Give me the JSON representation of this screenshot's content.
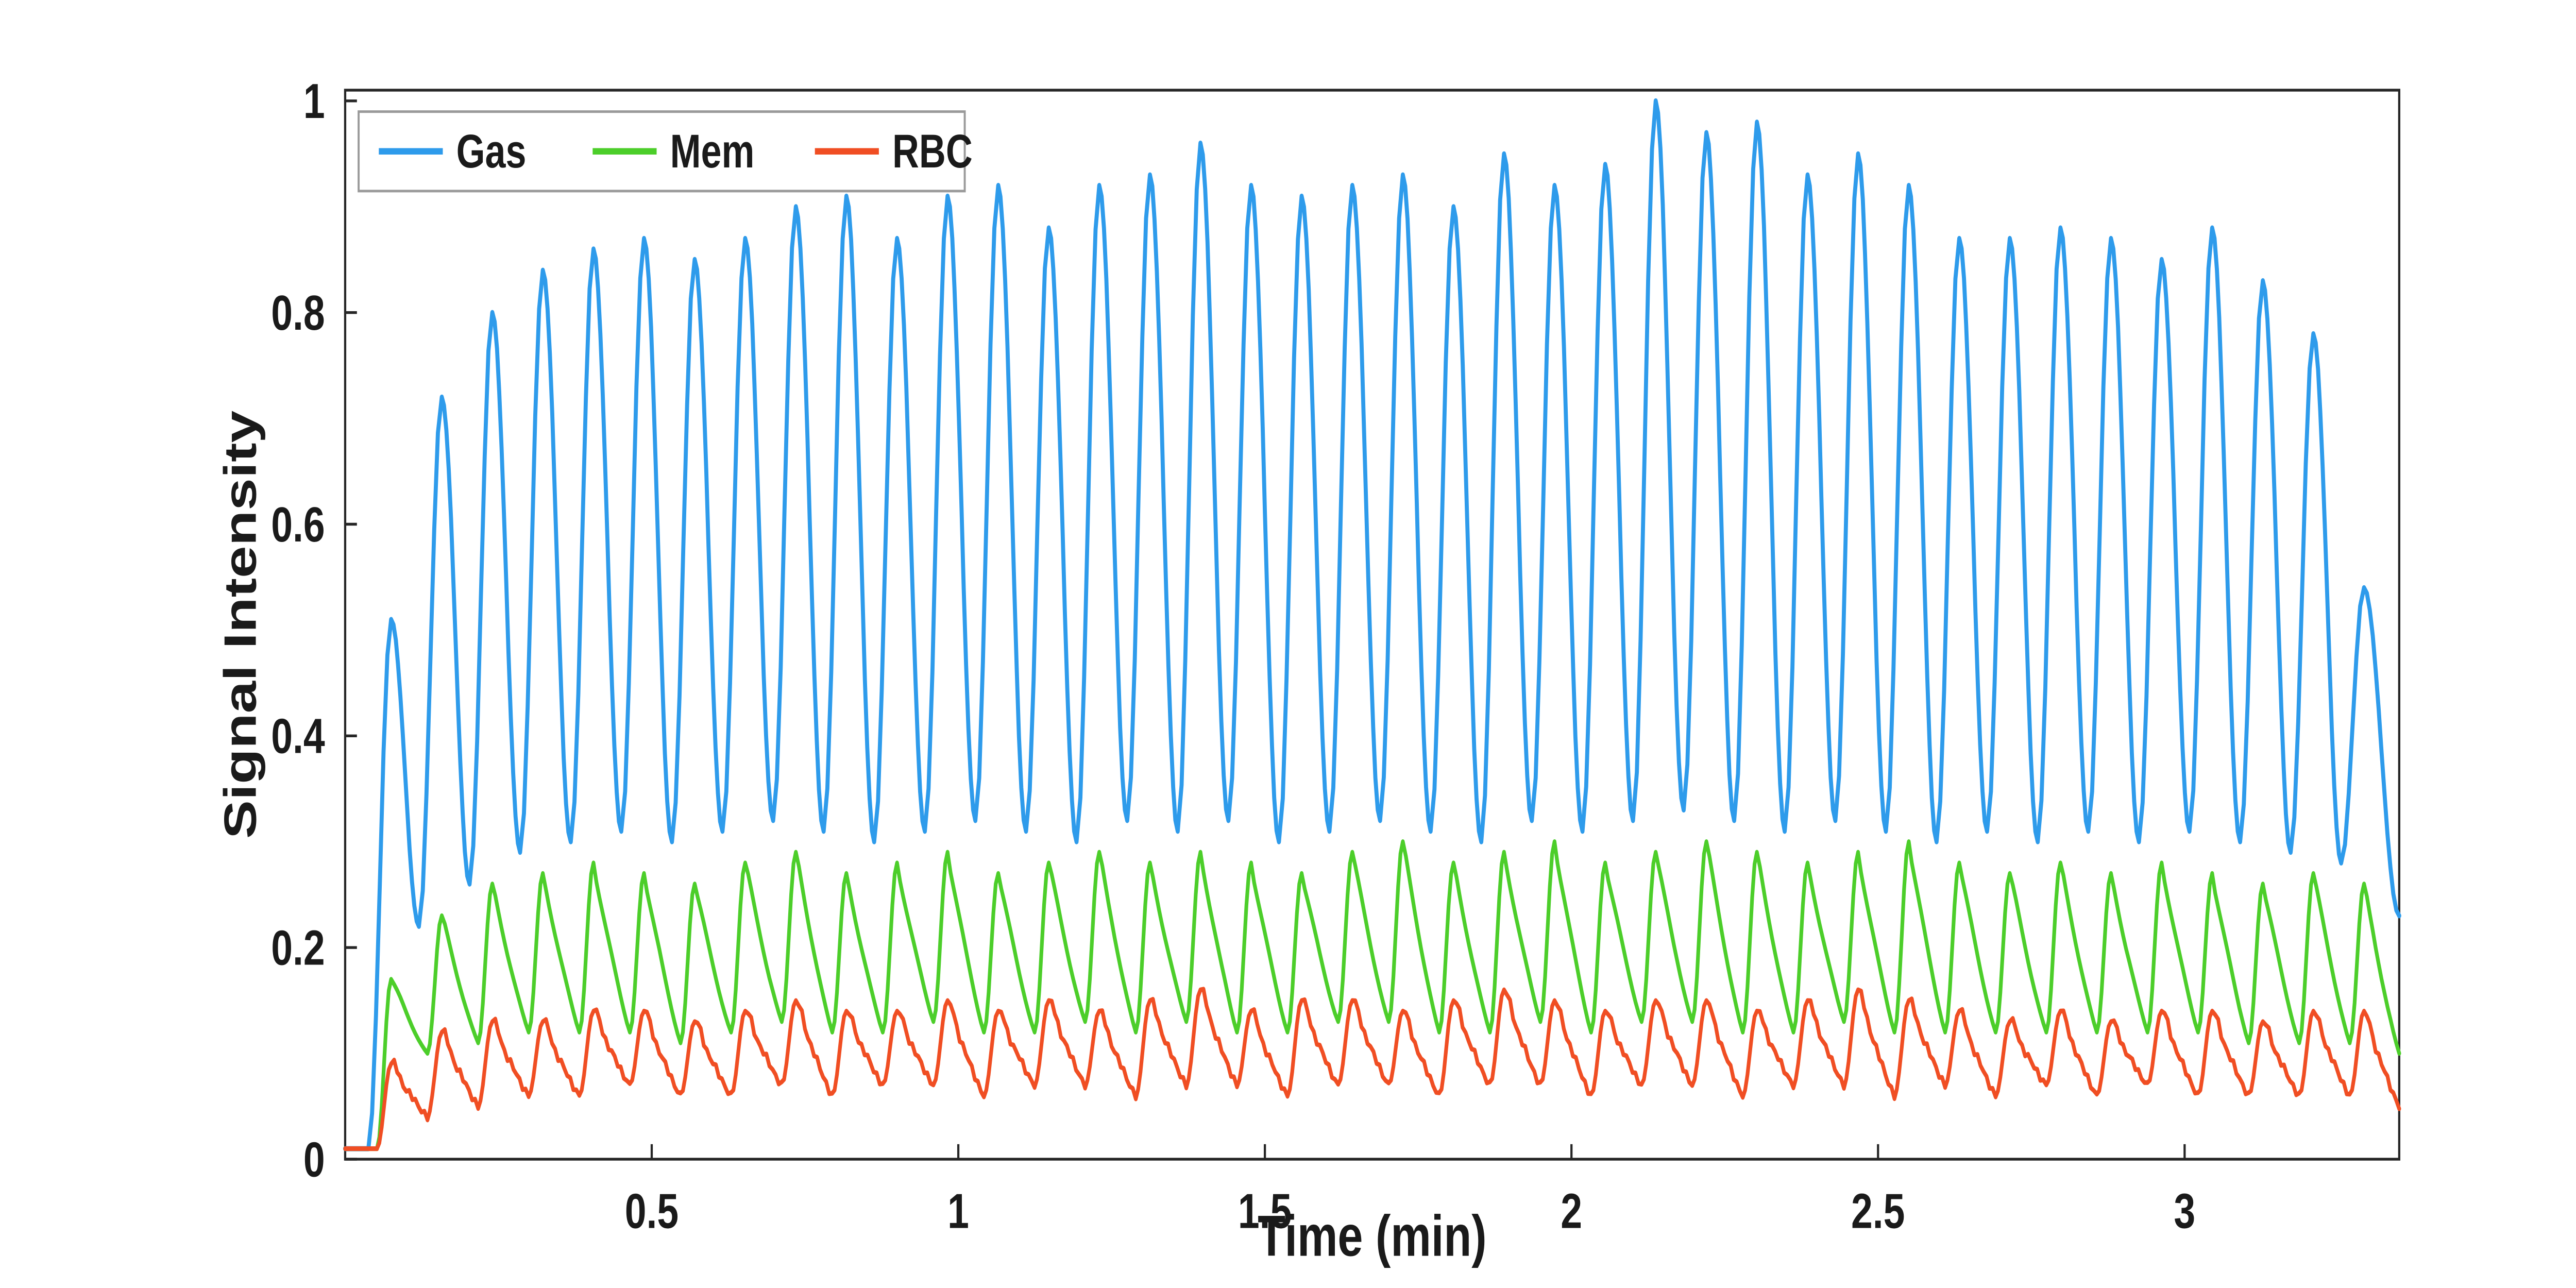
{
  "figure": {
    "background": "#ffffff",
    "axes_color": "#262626",
    "legend_border_color": "#9a9a9a"
  },
  "chart_data": {
    "type": "line",
    "title": "",
    "xlabel": "Time (min)",
    "ylabel": "Signal Intensity",
    "xlim": [
      0,
      3.35
    ],
    "ylim": [
      0,
      1.01
    ],
    "xticks": [
      0.5,
      1,
      1.5,
      2,
      2.5,
      3
    ],
    "xtick_labels": [
      "0.5",
      "1",
      "1.5",
      "2",
      "2.5",
      "3"
    ],
    "yticks": [
      0,
      0.2,
      0.4,
      0.6,
      0.8,
      1
    ],
    "ytick_labels": [
      "0",
      "0.2",
      "0.4",
      "0.6",
      "0.8",
      "1"
    ],
    "grid": false,
    "legend_position": "top-left-inside",
    "oscillation": {
      "period_min": 0.0825,
      "first_peak_time_min": 0.075,
      "num_cycles": 40,
      "initial_baseline": 0.01
    },
    "series": [
      {
        "name": "Gas",
        "color": "#2e9beb",
        "shape": "smooth",
        "rise_fraction": 0.45,
        "peaks": [
          0.51,
          0.72,
          0.8,
          0.84,
          0.86,
          0.87,
          0.85,
          0.87,
          0.9,
          0.91,
          0.87,
          0.91,
          0.92,
          0.88,
          0.92,
          0.93,
          0.96,
          0.92,
          0.91,
          0.92,
          0.93,
          0.9,
          0.95,
          0.92,
          0.94,
          1.0,
          0.97,
          0.98,
          0.93,
          0.95,
          0.92,
          0.87,
          0.87,
          0.88,
          0.87,
          0.85,
          0.88,
          0.83,
          0.78,
          0.54
        ],
        "troughs": [
          0.01,
          0.22,
          0.26,
          0.29,
          0.3,
          0.31,
          0.3,
          0.31,
          0.32,
          0.31,
          0.3,
          0.31,
          0.32,
          0.31,
          0.3,
          0.32,
          0.31,
          0.32,
          0.3,
          0.31,
          0.32,
          0.31,
          0.3,
          0.32,
          0.31,
          0.32,
          0.33,
          0.32,
          0.31,
          0.32,
          0.31,
          0.3,
          0.31,
          0.3,
          0.31,
          0.3,
          0.31,
          0.3,
          0.29,
          0.28,
          0.23
        ]
      },
      {
        "name": "Mem",
        "color": "#4cce2a",
        "shape": "sawtooth",
        "rise_fraction": 0.28,
        "peaks": [
          0.17,
          0.23,
          0.26,
          0.27,
          0.28,
          0.27,
          0.26,
          0.28,
          0.29,
          0.27,
          0.28,
          0.29,
          0.27,
          0.28,
          0.29,
          0.28,
          0.29,
          0.28,
          0.27,
          0.29,
          0.3,
          0.28,
          0.29,
          0.3,
          0.28,
          0.29,
          0.3,
          0.29,
          0.28,
          0.29,
          0.3,
          0.28,
          0.27,
          0.28,
          0.27,
          0.28,
          0.27,
          0.26,
          0.27,
          0.26
        ],
        "troughs": [
          0.01,
          0.1,
          0.11,
          0.12,
          0.12,
          0.12,
          0.11,
          0.12,
          0.13,
          0.12,
          0.12,
          0.13,
          0.12,
          0.12,
          0.13,
          0.12,
          0.13,
          0.12,
          0.12,
          0.13,
          0.13,
          0.12,
          0.12,
          0.13,
          0.12,
          0.13,
          0.13,
          0.12,
          0.12,
          0.13,
          0.12,
          0.12,
          0.12,
          0.12,
          0.12,
          0.12,
          0.12,
          0.11,
          0.11,
          0.11,
          0.1
        ]
      },
      {
        "name": "RBC",
        "color": "#f04e23",
        "shape": "sawtooth-noisy",
        "rise_fraction": 0.28,
        "peaks": [
          0.09,
          0.12,
          0.13,
          0.13,
          0.14,
          0.14,
          0.13,
          0.14,
          0.15,
          0.14,
          0.14,
          0.15,
          0.14,
          0.15,
          0.14,
          0.15,
          0.16,
          0.14,
          0.15,
          0.15,
          0.14,
          0.15,
          0.16,
          0.15,
          0.14,
          0.15,
          0.15,
          0.14,
          0.15,
          0.16,
          0.15,
          0.14,
          0.13,
          0.14,
          0.13,
          0.14,
          0.14,
          0.13,
          0.14,
          0.14
        ],
        "troughs": [
          0.01,
          0.04,
          0.05,
          0.06,
          0.06,
          0.07,
          0.06,
          0.06,
          0.07,
          0.06,
          0.07,
          0.07,
          0.06,
          0.07,
          0.07,
          0.06,
          0.07,
          0.07,
          0.06,
          0.07,
          0.07,
          0.06,
          0.07,
          0.07,
          0.06,
          0.07,
          0.07,
          0.06,
          0.07,
          0.07,
          0.06,
          0.07,
          0.06,
          0.07,
          0.06,
          0.07,
          0.06,
          0.06,
          0.06,
          0.06,
          0.05
        ]
      }
    ]
  }
}
